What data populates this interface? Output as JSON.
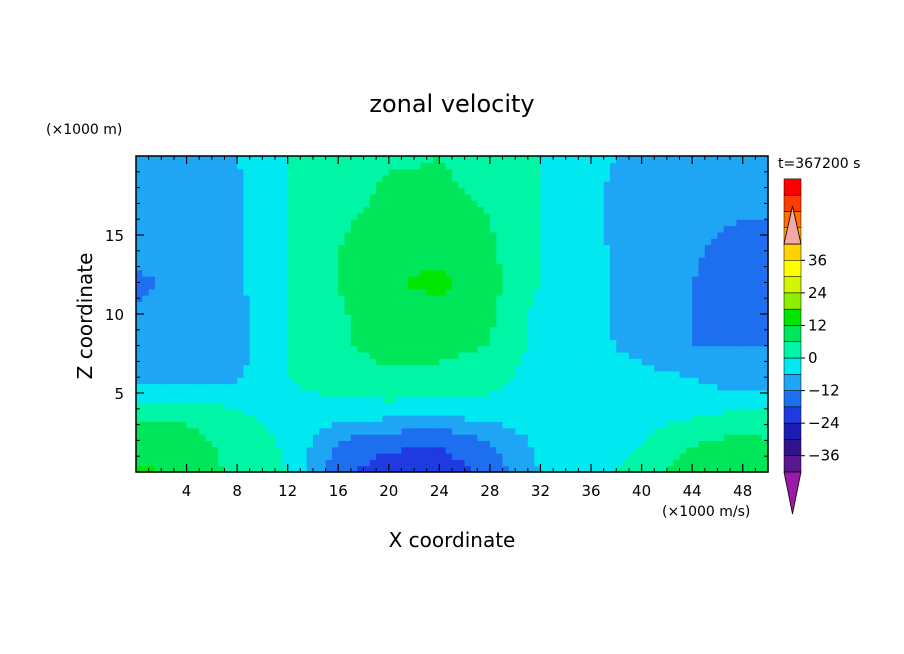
{
  "chart_data": {
    "type": "heatmap",
    "title": "zonal velocity",
    "xlabel": "X coordinate",
    "ylabel": "Z coordinate",
    "x_unit_label": "(×1000 m/s)",
    "y_unit_label": "(×1000 m)",
    "time_label": "t=367200 s",
    "xlim": [
      0,
      50
    ],
    "ylim": [
      0,
      20
    ],
    "x_ticks": [
      4,
      8,
      12,
      16,
      20,
      24,
      28,
      32,
      36,
      40,
      44,
      48
    ],
    "y_ticks": [
      5,
      10,
      15
    ],
    "colorbar": {
      "range": [
        -42,
        42
      ],
      "step": 6,
      "tick_values": [
        36,
        24,
        12,
        0,
        -12,
        -24,
        -36
      ],
      "tick_labels": [
        "36",
        "24",
        "12",
        "0",
        "−12",
        "−24",
        "−36"
      ],
      "colors": [
        "#5a1590",
        "#30138a",
        "#1c1cb4",
        "#1e3ae0",
        "#1e6ef0",
        "#1ea6f5",
        "#00e8f0",
        "#00f5a5",
        "#00e65a",
        "#00e600",
        "#8cf000",
        "#d2f500",
        "#ffff00",
        "#ffd200",
        "#ffa500",
        "#ff7000",
        "#ff3c00",
        "#ff0000"
      ],
      "over_color": "#f5a8a8",
      "under_color": "#9b1aa8"
    },
    "field_grid": {
      "x": [
        0,
        4,
        8,
        12,
        16,
        20,
        24,
        28,
        32,
        36,
        40,
        44,
        48,
        50
      ],
      "z": [
        0,
        2,
        4,
        6,
        8,
        10,
        12,
        14,
        16,
        18,
        20
      ],
      "values": [
        [
          13,
          11,
          4,
          0,
          -16,
          -22,
          -22,
          -16,
          -6,
          -2,
          2,
          10,
          11,
          9
        ],
        [
          10,
          9,
          3,
          -1,
          -12,
          -16,
          -17,
          -12,
          -4,
          -5,
          0,
          5,
          8,
          6
        ],
        [
          4,
          3,
          0,
          -2,
          -2,
          -2,
          -3,
          -2,
          -2,
          -5,
          -3,
          -2,
          0,
          0
        ],
        [
          -10,
          -9,
          -7,
          0,
          3,
          5,
          4,
          2,
          -3,
          -4,
          -4,
          -6,
          -10,
          -10
        ],
        [
          -11,
          -11,
          -8,
          0,
          5,
          8,
          8,
          6,
          -2,
          -4,
          -8,
          -12,
          -12,
          -12
        ],
        [
          -11,
          -10,
          -8,
          0,
          5,
          10,
          9,
          7,
          -2,
          -4,
          -10,
          -12,
          -14,
          -14
        ],
        [
          -14,
          -9,
          -7,
          0,
          6,
          11,
          14,
          8,
          0,
          -3,
          -10,
          -12,
          -17,
          -14
        ],
        [
          -9,
          -9,
          -7,
          0,
          6,
          9,
          10,
          7,
          0,
          -4,
          -10,
          -11,
          -15,
          -14
        ],
        [
          -11,
          -11,
          -7,
          0,
          5,
          8,
          8,
          6,
          0,
          -5,
          -10,
          -10,
          -12,
          -12
        ],
        [
          -10,
          -9,
          -7,
          0,
          3,
          7,
          7,
          5,
          0,
          -5,
          -9,
          -10,
          -11,
          -12
        ],
        [
          -9,
          -9,
          -6,
          0,
          2,
          5,
          6,
          3,
          0,
          -4,
          -8,
          -10,
          -11,
          -12
        ]
      ]
    },
    "grid": false
  }
}
